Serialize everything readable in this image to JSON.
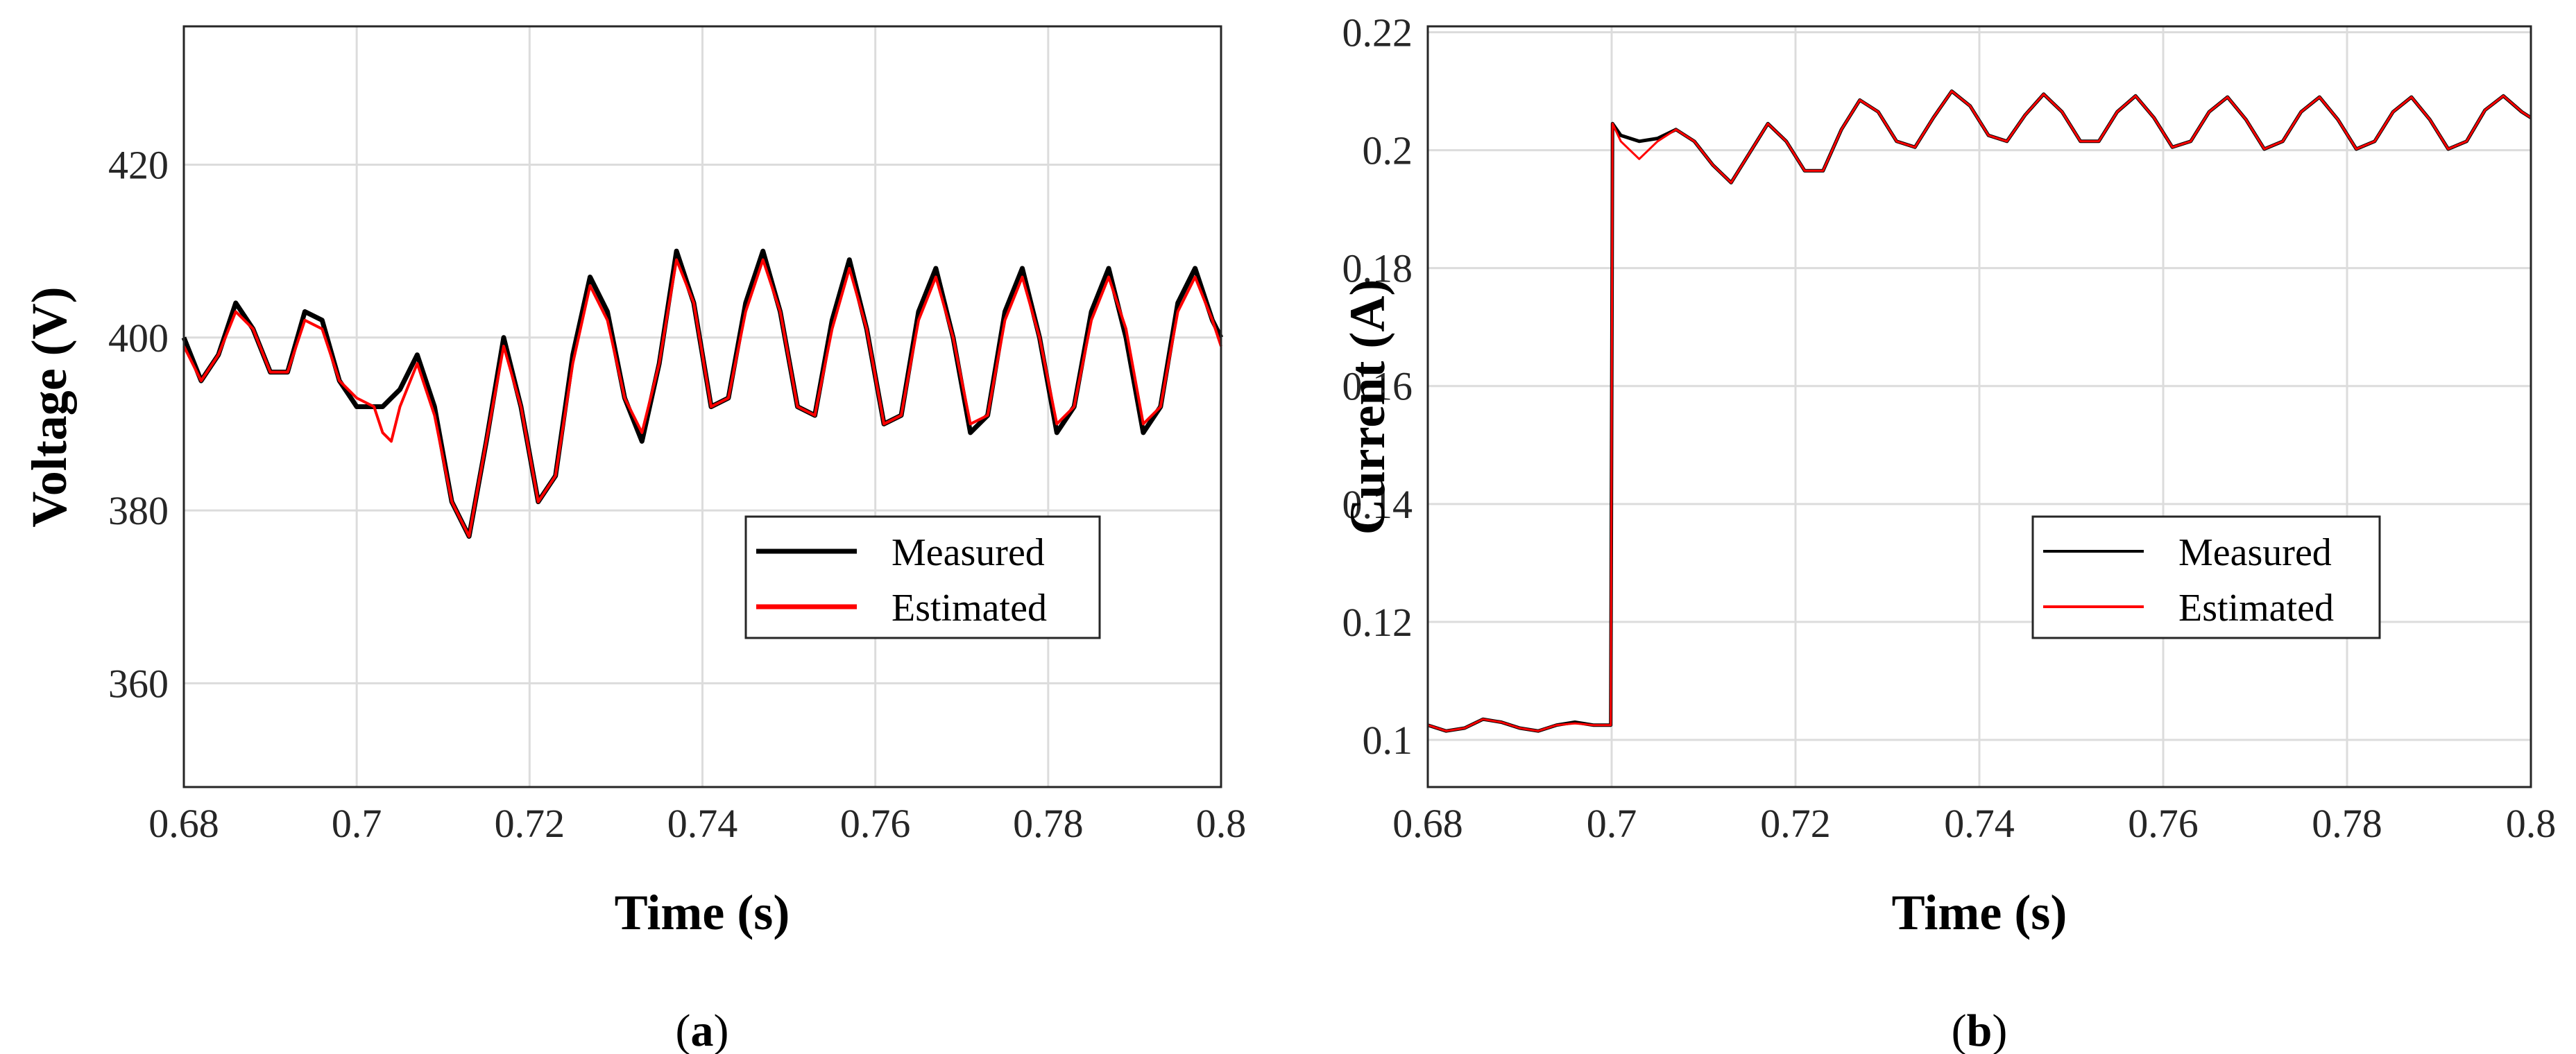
{
  "chart_data": [
    {
      "id": "a",
      "type": "line",
      "panel_label": "a",
      "xlabel": "Time (s)",
      "ylabel": "Voltage (V)",
      "xlim": [
        0.68,
        0.8
      ],
      "ylim": [
        348,
        436
      ],
      "xticks": [
        0.68,
        0.7,
        0.72,
        0.74,
        0.76,
        0.78,
        0.8
      ],
      "xtick_labels": [
        "0.68",
        "0.7",
        "0.72",
        "0.74",
        "0.76",
        "0.78",
        "0.8"
      ],
      "yticks": [
        360,
        380,
        400,
        420
      ],
      "ytick_labels": [
        "360",
        "380",
        "400",
        "420"
      ],
      "grid": true,
      "legend_position": "lower-right",
      "series": [
        {
          "name": "Measured",
          "color": "#000000",
          "x": [
            0.68,
            0.682,
            0.684,
            0.686,
            0.688,
            0.69,
            0.692,
            0.694,
            0.696,
            0.698,
            0.7,
            0.702,
            0.703,
            0.704,
            0.705,
            0.707,
            0.709,
            0.711,
            0.713,
            0.715,
            0.717,
            0.719,
            0.721,
            0.723,
            0.725,
            0.727,
            0.729,
            0.731,
            0.733,
            0.735,
            0.737,
            0.739,
            0.741,
            0.743,
            0.745,
            0.747,
            0.749,
            0.751,
            0.753,
            0.755,
            0.757,
            0.759,
            0.761,
            0.763,
            0.765,
            0.767,
            0.769,
            0.771,
            0.773,
            0.775,
            0.777,
            0.779,
            0.781,
            0.783,
            0.785,
            0.787,
            0.789,
            0.791,
            0.793,
            0.795,
            0.797,
            0.799,
            0.8
          ],
          "y": [
            400,
            395,
            398,
            404,
            401,
            396,
            396,
            403,
            402,
            395,
            392,
            392,
            392,
            393,
            394,
            398,
            392,
            381,
            377,
            388,
            400,
            392,
            381,
            384,
            398,
            407,
            403,
            393,
            388,
            397,
            410,
            404,
            392,
            393,
            404,
            410,
            403,
            392,
            391,
            402,
            409,
            401,
            390,
            391,
            403,
            408,
            400,
            389,
            391,
            403,
            408,
            400,
            389,
            392,
            403,
            408,
            400,
            389,
            392,
            404,
            408,
            402,
            400
          ]
        },
        {
          "name": "Estimated",
          "color": "#ff0000",
          "x": [
            0.68,
            0.682,
            0.684,
            0.686,
            0.688,
            0.69,
            0.692,
            0.694,
            0.696,
            0.698,
            0.7,
            0.702,
            0.703,
            0.704,
            0.705,
            0.707,
            0.709,
            0.711,
            0.713,
            0.715,
            0.717,
            0.719,
            0.721,
            0.723,
            0.725,
            0.727,
            0.729,
            0.731,
            0.733,
            0.735,
            0.737,
            0.739,
            0.741,
            0.743,
            0.745,
            0.747,
            0.749,
            0.751,
            0.753,
            0.755,
            0.757,
            0.759,
            0.761,
            0.763,
            0.765,
            0.767,
            0.769,
            0.771,
            0.773,
            0.775,
            0.777,
            0.779,
            0.781,
            0.783,
            0.785,
            0.787,
            0.789,
            0.791,
            0.793,
            0.795,
            0.797,
            0.799,
            0.8
          ],
          "y": [
            399,
            395,
            398,
            403,
            401,
            396,
            396,
            402,
            401,
            395,
            393,
            392,
            389,
            388,
            392,
            397,
            391,
            381,
            377,
            388,
            399,
            392,
            381,
            384,
            397,
            406,
            402,
            393,
            389,
            397,
            409,
            404,
            392,
            393,
            403,
            409,
            403,
            392,
            391,
            401,
            408,
            401,
            390,
            391,
            402,
            407,
            400,
            390,
            391,
            402,
            407,
            400,
            390,
            392,
            402,
            407,
            401,
            390,
            392,
            403,
            407,
            402,
            399
          ]
        }
      ]
    },
    {
      "id": "b",
      "type": "line",
      "panel_label": "b",
      "xlabel": "Time (s)",
      "ylabel": "Current (A)",
      "xlim": [
        0.68,
        0.8
      ],
      "ylim": [
        0.092,
        0.221
      ],
      "xticks": [
        0.68,
        0.7,
        0.72,
        0.74,
        0.76,
        0.78,
        0.8
      ],
      "xtick_labels": [
        "0.68",
        "0.7",
        "0.72",
        "0.74",
        "0.76",
        "0.78",
        "0.8"
      ],
      "yticks": [
        0.1,
        0.12,
        0.14,
        0.16,
        0.18,
        0.2,
        0.22
      ],
      "ytick_labels": [
        "0.1",
        "0.12",
        "0.14",
        "0.16",
        "0.18",
        "0.2",
        "0.22"
      ],
      "grid": true,
      "legend_position": "center-right",
      "series": [
        {
          "name": "Measured",
          "color": "#000000",
          "x": [
            0.68,
            0.682,
            0.684,
            0.686,
            0.688,
            0.69,
            0.692,
            0.694,
            0.696,
            0.698,
            0.6999,
            0.7001,
            0.701,
            0.703,
            0.705,
            0.707,
            0.709,
            0.711,
            0.713,
            0.715,
            0.717,
            0.719,
            0.721,
            0.723,
            0.725,
            0.727,
            0.729,
            0.731,
            0.733,
            0.735,
            0.737,
            0.739,
            0.741,
            0.743,
            0.745,
            0.747,
            0.749,
            0.751,
            0.753,
            0.755,
            0.757,
            0.759,
            0.761,
            0.763,
            0.765,
            0.767,
            0.769,
            0.771,
            0.773,
            0.775,
            0.777,
            0.779,
            0.781,
            0.783,
            0.785,
            0.787,
            0.789,
            0.791,
            0.793,
            0.795,
            0.797,
            0.799,
            0.8
          ],
          "y": [
            0.1025,
            0.1015,
            0.102,
            0.1035,
            0.103,
            0.102,
            0.1015,
            0.1025,
            0.103,
            0.1025,
            0.1025,
            0.2045,
            0.2025,
            0.2015,
            0.202,
            0.2035,
            0.2015,
            0.1975,
            0.1945,
            0.1995,
            0.2045,
            0.2015,
            0.1965,
            0.1965,
            0.2035,
            0.2085,
            0.2065,
            0.2015,
            0.2005,
            0.2055,
            0.21,
            0.2075,
            0.2025,
            0.2015,
            0.206,
            0.2095,
            0.2065,
            0.2015,
            0.2015,
            0.2065,
            0.2092,
            0.2055,
            0.2005,
            0.2015,
            0.2065,
            0.209,
            0.2052,
            0.2002,
            0.2015,
            0.2065,
            0.209,
            0.2052,
            0.2002,
            0.2015,
            0.2065,
            0.209,
            0.2052,
            0.2002,
            0.2015,
            0.2068,
            0.2092,
            0.2065,
            0.2055
          ]
        },
        {
          "name": "Estimated",
          "color": "#ff0000",
          "x": [
            0.68,
            0.682,
            0.684,
            0.686,
            0.688,
            0.69,
            0.692,
            0.694,
            0.696,
            0.698,
            0.6999,
            0.7001,
            0.701,
            0.703,
            0.705,
            0.707,
            0.709,
            0.711,
            0.713,
            0.715,
            0.717,
            0.719,
            0.721,
            0.723,
            0.725,
            0.727,
            0.729,
            0.731,
            0.733,
            0.735,
            0.737,
            0.739,
            0.741,
            0.743,
            0.745,
            0.747,
            0.749,
            0.751,
            0.753,
            0.755,
            0.757,
            0.759,
            0.761,
            0.763,
            0.765,
            0.767,
            0.769,
            0.771,
            0.773,
            0.775,
            0.777,
            0.779,
            0.781,
            0.783,
            0.785,
            0.787,
            0.789,
            0.791,
            0.793,
            0.795,
            0.797,
            0.799,
            0.8
          ],
          "y": [
            0.1025,
            0.1015,
            0.102,
            0.1035,
            0.103,
            0.102,
            0.1015,
            0.1025,
            0.1028,
            0.1025,
            0.1025,
            0.2045,
            0.2015,
            0.1985,
            0.2015,
            0.2035,
            0.2015,
            0.1975,
            0.1945,
            0.1995,
            0.2045,
            0.2015,
            0.1965,
            0.1965,
            0.2035,
            0.2085,
            0.2065,
            0.2015,
            0.2005,
            0.2055,
            0.21,
            0.2075,
            0.2025,
            0.2015,
            0.206,
            0.2095,
            0.2065,
            0.2015,
            0.2015,
            0.2065,
            0.2092,
            0.2055,
            0.2005,
            0.2015,
            0.2065,
            0.209,
            0.2052,
            0.2002,
            0.2015,
            0.2065,
            0.209,
            0.2052,
            0.2002,
            0.2015,
            0.2065,
            0.209,
            0.2052,
            0.2002,
            0.2015,
            0.2068,
            0.2092,
            0.2065,
            0.2055
          ]
        }
      ]
    }
  ]
}
